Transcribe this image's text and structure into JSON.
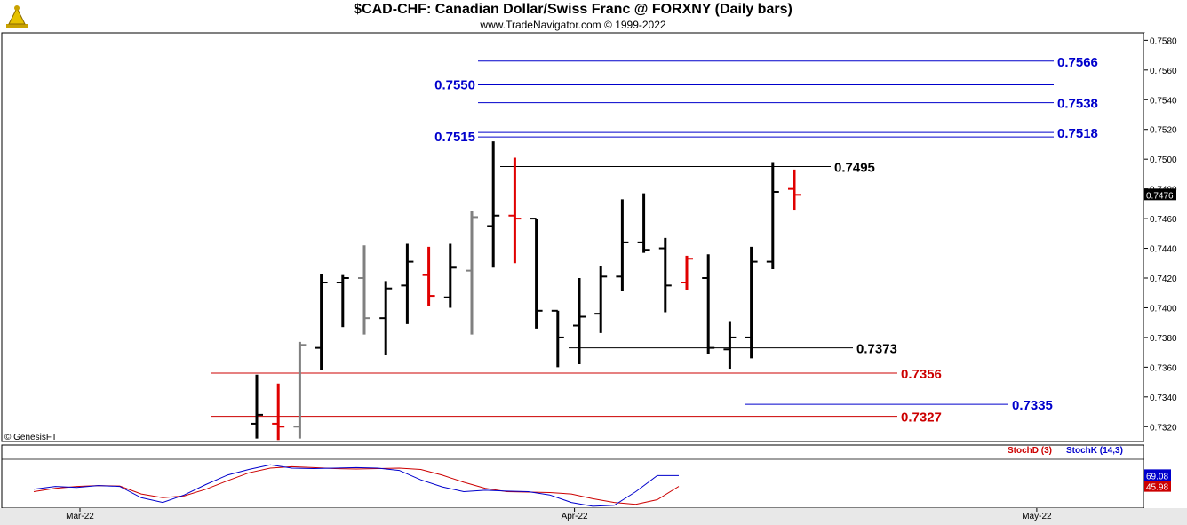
{
  "header": {
    "title": "$CAD-CHF:  Canadian Dollar/Swiss Franc @ FORXNY  (Daily bars)",
    "subtitle": "www.TradeNavigator.com © 1999-2022",
    "copyright": "© GenesisFT"
  },
  "colors": {
    "up": "#000000",
    "down": "#e00000",
    "neutral": "#808080",
    "blue_level": "#0000cc",
    "red_level": "#cc0000",
    "stochD": "#cc0000",
    "stochK": "#0000cc"
  },
  "chart_data": [
    {
      "type": "ohlc",
      "title": "$CAD-CHF",
      "ylim": [
        0.731,
        0.7585
      ],
      "y_ticks": [
        "0.7580",
        "0.7560",
        "0.7540",
        "0.7520",
        "0.7500",
        "0.7480",
        "0.7460",
        "0.7440",
        "0.7420",
        "0.7400",
        "0.7380",
        "0.7360",
        "0.7340",
        "0.7320"
      ],
      "x_ticks": [
        {
          "label": "Mar-22",
          "index": 0
        },
        {
          "label": "Apr-22",
          "index": 23
        },
        {
          "label": "May-22",
          "index": 44.5
        }
      ],
      "last_price": "0.7476",
      "bars": [
        {
          "o": 0.7322,
          "h": 0.7355,
          "l": 0.7312,
          "c": 0.7328,
          "color": "up"
        },
        {
          "o": 0.7322,
          "h": 0.7349,
          "l": 0.7311,
          "c": 0.732,
          "color": "down"
        },
        {
          "o": 0.732,
          "h": 0.7377,
          "l": 0.7312,
          "c": 0.7375,
          "color": "neutral"
        },
        {
          "o": 0.7373,
          "h": 0.7423,
          "l": 0.7358,
          "c": 0.7417,
          "color": "up"
        },
        {
          "o": 0.7417,
          "h": 0.7422,
          "l": 0.7387,
          "c": 0.742,
          "color": "up"
        },
        {
          "o": 0.742,
          "h": 0.7442,
          "l": 0.7382,
          "c": 0.7393,
          "color": "neutral"
        },
        {
          "o": 0.7393,
          "h": 0.7418,
          "l": 0.7368,
          "c": 0.7413,
          "color": "up"
        },
        {
          "o": 0.7415,
          "h": 0.7443,
          "l": 0.7389,
          "c": 0.7431,
          "color": "up"
        },
        {
          "o": 0.7422,
          "h": 0.7441,
          "l": 0.7401,
          "c": 0.7408,
          "color": "down"
        },
        {
          "o": 0.7407,
          "h": 0.7443,
          "l": 0.74,
          "c": 0.7427,
          "color": "up"
        },
        {
          "o": 0.7425,
          "h": 0.7465,
          "l": 0.7382,
          "c": 0.7461,
          "color": "neutral"
        },
        {
          "o": 0.7455,
          "h": 0.7512,
          "l": 0.7427,
          "c": 0.7462,
          "color": "up"
        },
        {
          "o": 0.7462,
          "h": 0.7501,
          "l": 0.743,
          "c": 0.746,
          "color": "down"
        },
        {
          "o": 0.746,
          "h": 0.746,
          "l": 0.7386,
          "c": 0.7398,
          "color": "up"
        },
        {
          "o": 0.7398,
          "h": 0.7398,
          "l": 0.736,
          "c": 0.738,
          "color": "up"
        },
        {
          "o": 0.7388,
          "h": 0.742,
          "l": 0.7362,
          "c": 0.7394,
          "color": "up"
        },
        {
          "o": 0.7396,
          "h": 0.7428,
          "l": 0.7383,
          "c": 0.7421,
          "color": "up"
        },
        {
          "o": 0.7421,
          "h": 0.7473,
          "l": 0.7411,
          "c": 0.7444,
          "color": "up"
        },
        {
          "o": 0.7444,
          "h": 0.7477,
          "l": 0.7437,
          "c": 0.7439,
          "color": "up"
        },
        {
          "o": 0.744,
          "h": 0.7447,
          "l": 0.7397,
          "c": 0.7415,
          "color": "up"
        },
        {
          "o": 0.7417,
          "h": 0.7435,
          "l": 0.7412,
          "c": 0.7433,
          "color": "down"
        },
        {
          "o": 0.742,
          "h": 0.7436,
          "l": 0.7369,
          "c": 0.7373,
          "color": "up"
        },
        {
          "o": 0.7372,
          "h": 0.7391,
          "l": 0.7359,
          "c": 0.738,
          "color": "up"
        },
        {
          "o": 0.738,
          "h": 0.7441,
          "l": 0.7366,
          "c": 0.7431,
          "color": "up"
        },
        {
          "o": 0.7431,
          "h": 0.7498,
          "l": 0.7426,
          "c": 0.7478,
          "color": "up"
        },
        {
          "o": 0.748,
          "h": 0.7493,
          "l": 0.7466,
          "c": 0.7476,
          "color": "down"
        }
      ],
      "levels": [
        {
          "value": "0.7566",
          "v": 0.7566,
          "color": "blue",
          "from": 0,
          "side": "right"
        },
        {
          "value": "0.7550",
          "v": 0.755,
          "color": "blue",
          "from": 0,
          "side": "left"
        },
        {
          "value": "0.7538",
          "v": 0.7538,
          "color": "blue",
          "from": 0,
          "side": "right"
        },
        {
          "value": "0.7518",
          "v": 0.7518,
          "color": "blue",
          "from": 0,
          "side": "right"
        },
        {
          "value": "0.7515",
          "v": 0.7515,
          "color": "blue",
          "from": 0,
          "side": "left"
        },
        {
          "value": "0.7495",
          "v": 0.7495,
          "color": "black",
          "from": 1,
          "side": "right"
        },
        {
          "value": "0.7373",
          "v": 0.7373,
          "color": "black",
          "from": 2,
          "side": "right"
        },
        {
          "value": "0.7356",
          "v": 0.7356,
          "color": "red",
          "from": 3,
          "side": "right"
        },
        {
          "value": "0.7335",
          "v": 0.7335,
          "color": "blue",
          "from": 4,
          "side": "right"
        },
        {
          "value": "0.7327",
          "v": 0.7327,
          "color": "red",
          "from": 3,
          "side": "right"
        }
      ]
    },
    {
      "type": "line",
      "title": "Stochastic",
      "ylim": [
        0,
        100
      ],
      "series": [
        {
          "name": "StochD (3)",
          "color": "red",
          "last": "45.98",
          "values": [
            35,
            42,
            46,
            48,
            47,
            30,
            22,
            26,
            40,
            58,
            75,
            85,
            88,
            86,
            84,
            83,
            84,
            85,
            82,
            70,
            55,
            42,
            35,
            34,
            33,
            30,
            20,
            12,
            8,
            18,
            45.98
          ]
        },
        {
          "name": "StochK (14,3)",
          "color": "blue",
          "last": "69.08",
          "values": [
            40,
            46,
            44,
            48,
            46,
            22,
            12,
            28,
            50,
            70,
            82,
            92,
            85,
            84,
            85,
            86,
            85,
            80,
            60,
            45,
            35,
            38,
            36,
            35,
            28,
            12,
            4,
            6,
            35,
            69.08,
            69.08
          ]
        }
      ]
    }
  ]
}
